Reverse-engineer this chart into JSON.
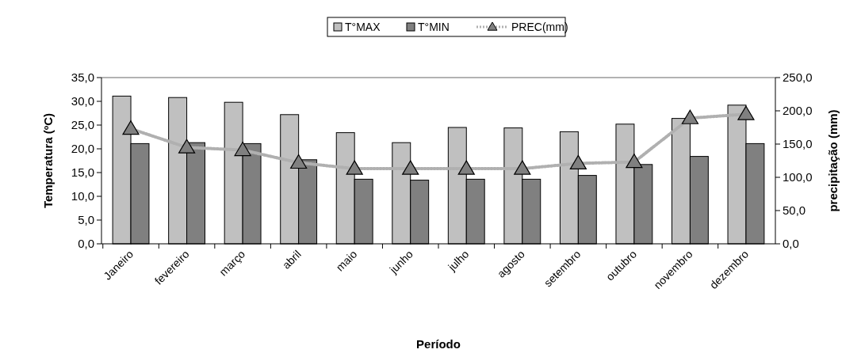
{
  "chart_data": {
    "type": "bar",
    "xlabel": "Período",
    "ylabel": "Temperatura (ºC)",
    "y2label": "precipitação (mm)",
    "categories": [
      "Janeiro",
      "fevereiro",
      "março",
      "abril",
      "maio",
      "junho",
      "julho",
      "agosto",
      "setembro",
      "outubro",
      "novembro",
      "dezembro"
    ],
    "series": [
      {
        "name": "T°MAX",
        "color": "#c0c0c0",
        "values": [
          31.1,
          30.8,
          29.8,
          27.2,
          23.4,
          21.3,
          24.5,
          24.4,
          23.6,
          25.2,
          26.4,
          29.2
        ]
      },
      {
        "name": "T°MIN",
        "color": "#808080",
        "values": [
          21.1,
          21.3,
          21.1,
          17.7,
          13.6,
          13.4,
          13.6,
          13.6,
          14.4,
          16.7,
          18.4,
          21.1
        ]
      },
      {
        "name": "PREC(mm)",
        "type": "line",
        "axis": "y2",
        "color": "#b0b0b0",
        "marker": "triangle",
        "line_style": "dotted",
        "values": [
          173,
          145,
          141,
          122,
          113,
          113,
          113,
          113,
          121,
          123,
          189,
          195
        ]
      }
    ],
    "ylim": [
      0,
      35
    ],
    "yticks": [
      {
        "value": 0,
        "label": "0,0"
      },
      {
        "value": 5,
        "label": "5,0"
      },
      {
        "value": 10,
        "label": "10,0"
      },
      {
        "value": 15,
        "label": "15,0"
      },
      {
        "value": 20,
        "label": "20,0"
      },
      {
        "value": 25,
        "label": "25,0"
      },
      {
        "value": 30,
        "label": "30,0"
      },
      {
        "value": 35,
        "label": "35,0"
      }
    ],
    "y2lim": [
      0,
      250
    ],
    "y2ticks": [
      {
        "value": 0,
        "label": "0,0"
      },
      {
        "value": 50,
        "label": "50,0"
      },
      {
        "value": 100,
        "label": "100,0"
      },
      {
        "value": 150,
        "label": "150,0"
      },
      {
        "value": 200,
        "label": "200,0"
      },
      {
        "value": 250,
        "label": "250,0"
      }
    ],
    "legend": "top",
    "grid": false
  }
}
